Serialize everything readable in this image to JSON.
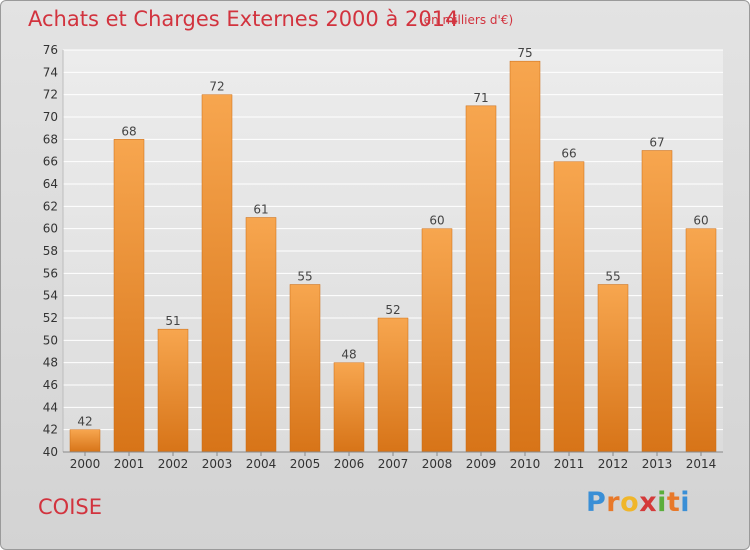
{
  "title": "Achats et Charges Externes 2000 à 2014",
  "unit": "(en milliers d'€)",
  "commune": "COISE",
  "logo": {
    "letters": [
      "P",
      "r",
      "o",
      "x",
      "i",
      "t",
      "i"
    ],
    "colors": [
      "#3a8fd6",
      "#e8792a",
      "#f0b62a",
      "#d43a3a",
      "#5aae3c",
      "#e8792a",
      "#3a8fd6"
    ]
  },
  "colors": {
    "bar": "#ee8e34",
    "title": "#d2333e"
  },
  "chart_data": {
    "type": "bar",
    "title": "Achats et Charges Externes 2000 à 2014",
    "xlabel": "",
    "ylabel": "",
    "categories": [
      "2000",
      "2001",
      "2002",
      "2003",
      "2004",
      "2005",
      "2006",
      "2007",
      "2008",
      "2009",
      "2010",
      "2011",
      "2012",
      "2013",
      "2014"
    ],
    "values": [
      42,
      68,
      51,
      72,
      61,
      55,
      48,
      52,
      60,
      71,
      75,
      66,
      55,
      67,
      60
    ],
    "ylim": [
      40,
      76
    ],
    "yticks": [
      40,
      42,
      44,
      46,
      48,
      50,
      52,
      54,
      56,
      58,
      60,
      62,
      64,
      66,
      68,
      70,
      72,
      74,
      76
    ],
    "grid": true
  }
}
